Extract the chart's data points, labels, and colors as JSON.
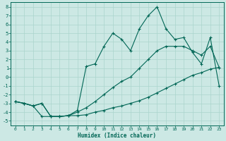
{
  "xlabel": "Humidex (Indice chaleur)",
  "bg_color": "#cce8e4",
  "grid_color": "#aad4cc",
  "line_color": "#006655",
  "xlim": [
    -0.5,
    23.5
  ],
  "ylim": [
    -5.5,
    8.5
  ],
  "xticks": [
    0,
    1,
    2,
    3,
    4,
    5,
    6,
    7,
    8,
    9,
    10,
    11,
    12,
    13,
    14,
    15,
    16,
    17,
    18,
    19,
    20,
    21,
    22,
    23
  ],
  "yticks": [
    -5,
    -4,
    -3,
    -2,
    -1,
    0,
    1,
    2,
    3,
    4,
    5,
    6,
    7,
    8
  ],
  "line1_x": [
    0,
    1,
    2,
    3,
    4,
    5,
    6,
    7,
    8,
    9,
    10,
    11,
    12,
    13,
    14,
    15,
    16,
    17,
    18,
    19,
    20,
    21,
    22,
    23
  ],
  "line1_y": [
    -2.8,
    -3.0,
    -3.3,
    -4.5,
    -4.5,
    -4.5,
    -4.4,
    -4.4,
    -4.3,
    -4.0,
    -3.8,
    -3.5,
    -3.3,
    -3.0,
    -2.7,
    -2.3,
    -1.8,
    -1.3,
    -0.8,
    -0.3,
    0.2,
    0.5,
    0.9,
    1.1
  ],
  "line2_x": [
    0,
    1,
    2,
    3,
    4,
    5,
    6,
    7,
    8,
    9,
    10,
    11,
    12,
    13,
    14,
    15,
    16,
    17,
    18,
    19,
    20,
    21,
    22,
    23
  ],
  "line2_y": [
    -2.8,
    -3.0,
    -3.3,
    -3.0,
    -4.5,
    -4.5,
    -4.4,
    -4.0,
    -3.5,
    -2.8,
    -2.0,
    -1.2,
    -0.5,
    0.0,
    1.0,
    2.0,
    3.0,
    3.5,
    3.5,
    3.5,
    3.0,
    2.5,
    3.5,
    1.1
  ],
  "line3_x": [
    0,
    1,
    2,
    3,
    4,
    5,
    6,
    7,
    8,
    9,
    10,
    11,
    12,
    13,
    14,
    15,
    16,
    17,
    18,
    19,
    20,
    21,
    22,
    23
  ],
  "line3_y": [
    -2.8,
    -3.0,
    -3.3,
    -3.0,
    -4.5,
    -4.5,
    -4.4,
    -3.8,
    1.2,
    1.5,
    3.5,
    5.0,
    4.3,
    3.0,
    5.5,
    7.0,
    8.0,
    5.5,
    4.3,
    4.5,
    2.8,
    1.5,
    4.5,
    -1.0
  ]
}
